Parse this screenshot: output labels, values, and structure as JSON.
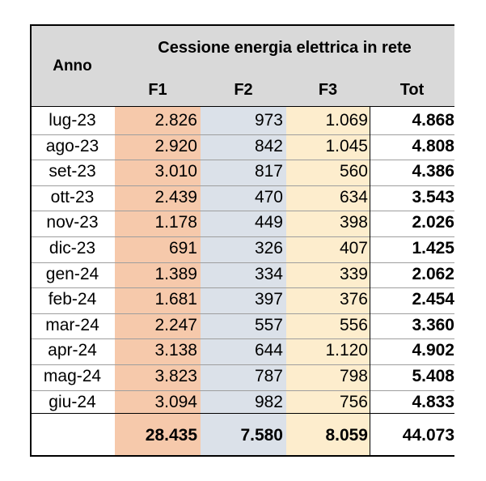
{
  "table": {
    "row_header": "Anno",
    "title": "Cessione energia elettrica in rete",
    "columns": [
      "F1",
      "F2",
      "F3",
      "Tot"
    ],
    "colors": {
      "header_bg": "#d9d9d9",
      "f1_bg": "#f6c9ab",
      "f2_bg": "#dbe1e9",
      "f3_bg": "#fdedcd"
    },
    "rows": [
      {
        "anno": "lug-23",
        "f1": "2.826",
        "f2": "973",
        "f3": "1.069",
        "tot": "4.868"
      },
      {
        "anno": "ago-23",
        "f1": "2.920",
        "f2": "842",
        "f3": "1.045",
        "tot": "4.808"
      },
      {
        "anno": "set-23",
        "f1": "3.010",
        "f2": "817",
        "f3": "560",
        "tot": "4.386"
      },
      {
        "anno": "ott-23",
        "f1": "2.439",
        "f2": "470",
        "f3": "634",
        "tot": "3.543"
      },
      {
        "anno": "nov-23",
        "f1": "1.178",
        "f2": "449",
        "f3": "398",
        "tot": "2.026"
      },
      {
        "anno": "dic-23",
        "f1": "691",
        "f2": "326",
        "f3": "407",
        "tot": "1.425"
      },
      {
        "anno": "gen-24",
        "f1": "1.389",
        "f2": "334",
        "f3": "339",
        "tot": "2.062"
      },
      {
        "anno": "feb-24",
        "f1": "1.681",
        "f2": "397",
        "f3": "376",
        "tot": "2.454"
      },
      {
        "anno": "mar-24",
        "f1": "2.247",
        "f2": "557",
        "f3": "556",
        "tot": "3.360"
      },
      {
        "anno": "apr-24",
        "f1": "3.138",
        "f2": "644",
        "f3": "1.120",
        "tot": "4.902"
      },
      {
        "anno": "mag-24",
        "f1": "3.823",
        "f2": "787",
        "f3": "798",
        "tot": "5.408"
      },
      {
        "anno": "giu-24",
        "f1": "3.094",
        "f2": "982",
        "f3": "756",
        "tot": "4.833"
      }
    ],
    "totals": {
      "f1": "28.435",
      "f2": "7.580",
      "f3": "8.059",
      "tot": "44.073"
    }
  }
}
